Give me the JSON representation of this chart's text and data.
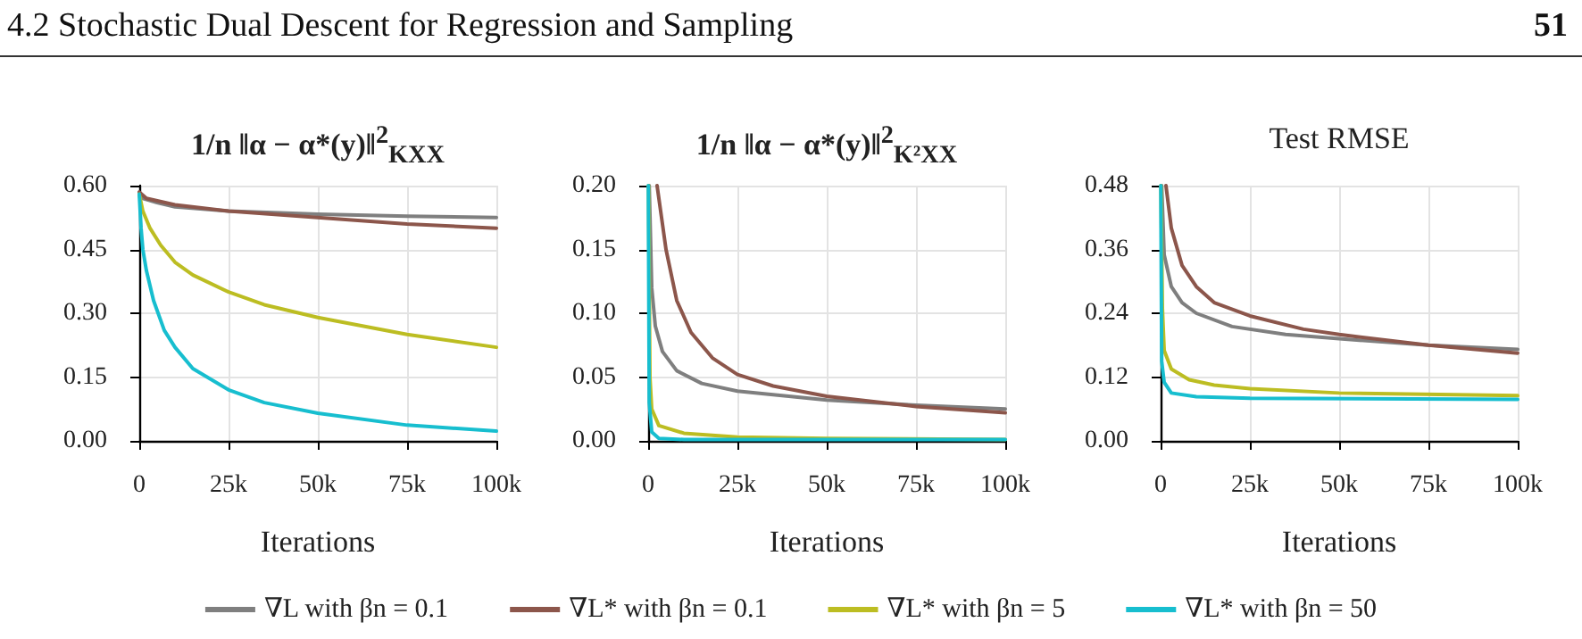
{
  "chart_data": [
    {
      "type": "line",
      "title": "1/n ‖α − α*(y)‖$^{2}$$_{KXX}$",
      "xlabel": "Iterations",
      "annotations": [
        "4.2 Stochastic Dual Descent for Regression and Sampling",
        "51"
      ],
      "xlim": [
        0,
        100000
      ],
      "xticks": [
        {
          "value": 0,
          "label": "0"
        },
        {
          "value": 25000,
          "label": "25k"
        },
        {
          "value": 50000,
          "label": "50k"
        },
        {
          "value": 75000,
          "label": "75k"
        },
        {
          "value": 100000,
          "label": "100k"
        }
      ],
      "ylim": [
        0,
        0.6
      ],
      "yticks": [
        {
          "value": 0,
          "label": "0.00"
        },
        0.15,
        {
          "value": 0.3,
          "label": "0.30"
        },
        0.45,
        {
          "value": 0.6,
          "label": "0.60"
        }
      ],
      "grid": true,
      "legend": "bottom",
      "series": [
        {
          "name": "∇L with βn = 0.1",
          "color": "#7f7f7f",
          "x": [
            0,
            1000,
            5000,
            10000,
            25000,
            50000,
            75000,
            100000
          ],
          "values": [
            0.58,
            0.57,
            0.56,
            0.55,
            0.54,
            0.533,
            0.528,
            0.525
          ]
        },
        {
          "name": "∇L* with βn = 0.1",
          "color": "#8c564b",
          "x": [
            0,
            2000,
            10000,
            25000,
            50000,
            75000,
            100000
          ],
          "values": [
            0.585,
            0.57,
            0.555,
            0.54,
            0.525,
            0.51,
            0.5
          ]
        },
        {
          "name": "∇L* with βn = 5",
          "color": "#bcbd22",
          "x": [
            0,
            1000,
            3000,
            6000,
            10000,
            15000,
            25000,
            35000,
            50000,
            75000,
            100000
          ],
          "values": [
            0.58,
            0.54,
            0.5,
            0.46,
            0.42,
            0.39,
            0.35,
            0.32,
            0.29,
            0.25,
            0.22
          ]
        },
        {
          "name": "∇L* with βn = 50",
          "color": "#17becf",
          "x": [
            0,
            500,
            1000,
            2000,
            4000,
            7000,
            10000,
            15000,
            25000,
            35000,
            50000,
            75000,
            100000
          ],
          "values": [
            0.58,
            0.5,
            0.45,
            0.4,
            0.33,
            0.26,
            0.22,
            0.17,
            0.12,
            0.09,
            0.065,
            0.037,
            0.023
          ]
        }
      ]
    },
    {
      "type": "line",
      "title": "1/n ‖α − α*(y)‖$^{2}$$_{K²XX}$",
      "xlabel": "Iterations",
      "xlim": [
        0,
        100000
      ],
      "xticks": [
        {
          "value": 0,
          "label": "0"
        },
        {
          "value": 25000,
          "label": "25k"
        },
        {
          "value": 50000,
          "label": "50k"
        },
        {
          "value": 75000,
          "label": "75k"
        },
        {
          "value": 100000,
          "label": "100k"
        }
      ],
      "ylim": [
        0,
        0.2
      ],
      "yticks": [
        {
          "value": 0,
          "label": "0.00"
        },
        0.05,
        {
          "value": 0.1,
          "label": "0.10"
        },
        0.15,
        {
          "value": 0.2,
          "label": "0.20"
        }
      ],
      "grid": true,
      "series": [
        {
          "color": "#7f7f7f",
          "x": [
            300,
            1000,
            2000,
            4000,
            8000,
            15000,
            25000,
            50000,
            75000,
            100000
          ],
          "values": [
            0.2,
            0.12,
            0.09,
            0.07,
            0.055,
            0.045,
            0.039,
            0.032,
            0.028,
            0.025
          ]
        },
        {
          "color": "#8c564b",
          "x": [
            2500,
            5000,
            8000,
            12000,
            18000,
            25000,
            35000,
            50000,
            75000,
            100000
          ],
          "values": [
            0.2,
            0.15,
            0.11,
            0.085,
            0.065,
            0.052,
            0.043,
            0.035,
            0.027,
            0.022
          ]
        },
        {
          "color": "#bcbd22",
          "x": [
            100,
            500,
            1000,
            3000,
            10000,
            25000,
            50000,
            100000
          ],
          "values": [
            0.2,
            0.05,
            0.025,
            0.012,
            0.006,
            0.003,
            0.002,
            0.001
          ]
        },
        {
          "color": "#17becf",
          "x": [
            50,
            300,
            1000,
            3000,
            10000,
            100000
          ],
          "values": [
            0.2,
            0.03,
            0.007,
            0.002,
            0.001,
            0.001
          ]
        }
      ]
    },
    {
      "type": "line",
      "title": "Test RMSE",
      "xlabel": "Iterations",
      "xlim": [
        0,
        100000
      ],
      "xticks": [
        {
          "value": 0,
          "label": "0"
        },
        {
          "value": 25000,
          "label": "25k"
        },
        {
          "value": 50000,
          "label": "50k"
        },
        {
          "value": 75000,
          "label": "75k"
        },
        {
          "value": 100000,
          "label": "100k"
        }
      ],
      "ylim": [
        0,
        0.48
      ],
      "yticks": [
        {
          "value": 0,
          "label": "0.00"
        },
        0.12,
        0.24,
        0.36,
        0.48
      ],
      "grid": true,
      "series": [
        {
          "color": "#7f7f7f",
          "x": [
            300,
            1000,
            3000,
            6000,
            10000,
            20000,
            35000,
            50000,
            75000,
            100000
          ],
          "values": [
            0.48,
            0.35,
            0.29,
            0.26,
            0.24,
            0.215,
            0.2,
            0.192,
            0.18,
            0.172
          ]
        },
        {
          "color": "#8c564b",
          "x": [
            1500,
            3000,
            6000,
            10000,
            15000,
            25000,
            40000,
            50000,
            75000,
            100000
          ],
          "values": [
            0.48,
            0.4,
            0.33,
            0.29,
            0.26,
            0.235,
            0.21,
            0.2,
            0.18,
            0.165
          ]
        },
        {
          "color": "#bcbd22",
          "x": [
            100,
            500,
            1000,
            3000,
            8000,
            15000,
            25000,
            50000,
            100000
          ],
          "values": [
            0.48,
            0.25,
            0.17,
            0.135,
            0.115,
            0.105,
            0.098,
            0.09,
            0.085
          ]
        },
        {
          "color": "#17becf",
          "x": [
            50,
            300,
            1000,
            3000,
            10000,
            25000,
            100000
          ],
          "values": [
            0.48,
            0.15,
            0.11,
            0.09,
            0.083,
            0.08,
            0.078
          ]
        }
      ]
    }
  ]
}
